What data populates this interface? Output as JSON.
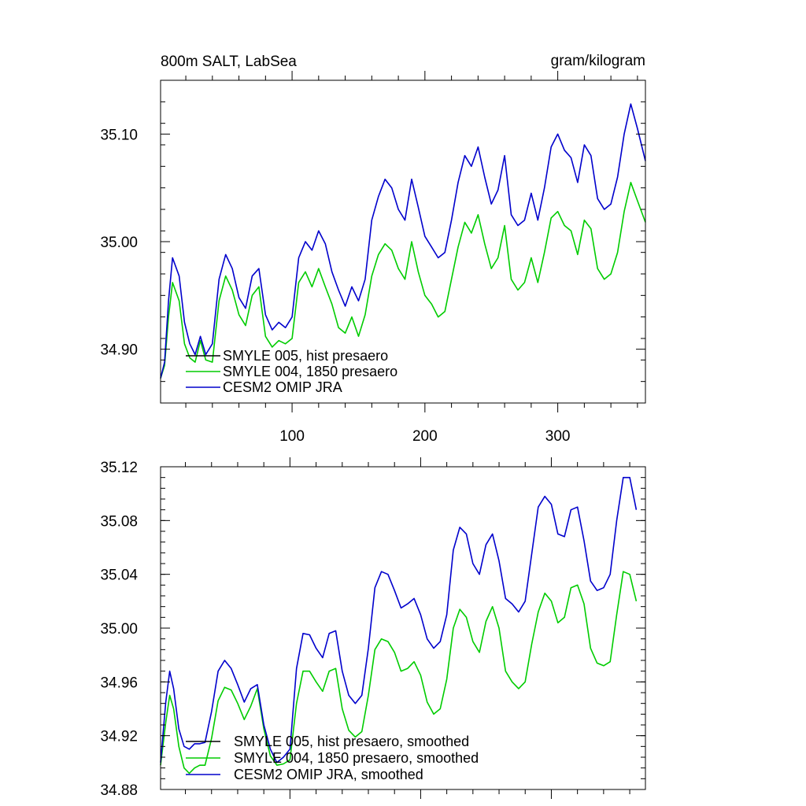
{
  "figure": {
    "title_left": "800m SALT, LabSea",
    "title_right": "gram/kilogram"
  },
  "chart_data": [
    {
      "type": "line",
      "title": "800m SALT, LabSea",
      "units": "gram/kilogram",
      "xlim": [
        1,
        366
      ],
      "ylim": [
        34.85,
        35.15
      ],
      "x_ticks": [
        100,
        200,
        300
      ],
      "x_tick_labels": [
        "100",
        "200",
        "300"
      ],
      "y_ticks": [
        34.9,
        35.0,
        35.1
      ],
      "y_tick_labels": [
        "34.90",
        "35.00",
        "35.10"
      ],
      "legend_position": "bottom-left",
      "series": [
        {
          "name": "SMYLE 005, hist presaero",
          "color": "#000000",
          "x": [],
          "values": []
        },
        {
          "name": "SMYLE 004, 1850 presaero",
          "color": "#00cc00",
          "x": [
            1,
            4,
            7,
            10,
            15,
            19,
            23,
            27,
            31,
            35,
            40,
            45,
            50,
            55,
            60,
            65,
            70,
            75,
            80,
            85,
            90,
            95,
            100,
            105,
            110,
            115,
            120,
            125,
            130,
            135,
            140,
            145,
            150,
            155,
            160,
            165,
            170,
            175,
            180,
            185,
            190,
            195,
            200,
            205,
            210,
            215,
            220,
            225,
            230,
            235,
            240,
            245,
            250,
            255,
            260,
            265,
            270,
            275,
            280,
            285,
            290,
            295,
            300,
            305,
            310,
            315,
            320,
            325,
            330,
            335,
            340,
            345,
            350,
            355,
            360,
            366
          ],
          "values": [
            34.873,
            34.885,
            34.93,
            34.962,
            34.945,
            34.905,
            34.892,
            34.888,
            34.908,
            34.89,
            34.888,
            34.945,
            34.968,
            34.955,
            34.932,
            34.922,
            34.95,
            34.958,
            34.912,
            34.902,
            34.908,
            34.905,
            34.91,
            34.962,
            34.972,
            34.958,
            34.975,
            34.958,
            34.942,
            34.92,
            34.915,
            34.93,
            34.912,
            34.932,
            34.968,
            34.988,
            34.998,
            34.992,
            34.975,
            34.965,
            35.0,
            34.972,
            34.95,
            34.942,
            34.93,
            34.935,
            34.965,
            34.995,
            35.018,
            35.008,
            35.025,
            34.998,
            34.975,
            34.985,
            35.015,
            34.965,
            34.955,
            34.962,
            34.985,
            34.962,
            34.99,
            35.022,
            35.028,
            35.015,
            35.01,
            34.988,
            35.02,
            35.012,
            34.975,
            34.965,
            34.97,
            34.99,
            35.028,
            35.055,
            35.038,
            35.018
          ]
        },
        {
          "name": "CESM2 OMIP JRA",
          "color": "#0000cc",
          "x": [
            1,
            4,
            7,
            10,
            15,
            19,
            23,
            27,
            31,
            35,
            40,
            45,
            50,
            55,
            60,
            65,
            70,
            75,
            80,
            85,
            90,
            95,
            100,
            105,
            110,
            115,
            120,
            125,
            130,
            135,
            140,
            145,
            150,
            155,
            160,
            165,
            170,
            175,
            180,
            185,
            190,
            195,
            200,
            205,
            210,
            215,
            220,
            225,
            230,
            235,
            240,
            245,
            250,
            255,
            260,
            265,
            270,
            275,
            280,
            285,
            290,
            295,
            300,
            305,
            310,
            315,
            320,
            325,
            330,
            335,
            340,
            345,
            350,
            355,
            360,
            366
          ],
          "values": [
            34.873,
            34.888,
            34.945,
            34.985,
            34.968,
            34.925,
            34.905,
            34.895,
            34.912,
            34.895,
            34.905,
            34.965,
            34.988,
            34.975,
            34.948,
            34.938,
            34.968,
            34.975,
            34.932,
            34.918,
            34.925,
            34.92,
            34.93,
            34.985,
            35.0,
            34.992,
            35.01,
            34.998,
            34.972,
            34.955,
            34.94,
            34.958,
            34.945,
            34.965,
            35.02,
            35.042,
            35.058,
            35.05,
            35.03,
            35.02,
            35.058,
            35.032,
            35.005,
            34.995,
            34.985,
            34.99,
            35.02,
            35.055,
            35.08,
            35.07,
            35.088,
            35.06,
            35.035,
            35.048,
            35.08,
            35.025,
            35.015,
            35.02,
            35.045,
            35.02,
            35.05,
            35.088,
            35.1,
            35.085,
            35.078,
            35.055,
            35.09,
            35.08,
            35.04,
            35.03,
            35.035,
            35.06,
            35.1,
            35.128,
            35.105,
            35.075
          ]
        }
      ]
    },
    {
      "type": "line",
      "title": "",
      "xlim": [
        1,
        372
      ],
      "ylim": [
        34.88,
        35.12
      ],
      "x_ticks": [
        100,
        200,
        300
      ],
      "y_ticks": [
        34.88,
        34.92,
        34.96,
        35.0,
        35.04,
        35.08,
        35.12
      ],
      "y_tick_labels": [
        "34.88",
        "34.92",
        "34.96",
        "35.00",
        "35.04",
        "35.08",
        "35.12"
      ],
      "legend_position": "bottom-left",
      "series": [
        {
          "name": "SMYLE 005, hist presaero, smoothed",
          "color": "#000000",
          "x": [],
          "values": []
        },
        {
          "name": "SMYLE 004, 1850 presaero, smoothed",
          "color": "#00cc00",
          "x": [
            1,
            5,
            8,
            11,
            15,
            19,
            23,
            27,
            31,
            35,
            40,
            45,
            50,
            55,
            60,
            65,
            70,
            75,
            80,
            85,
            90,
            95,
            100,
            105,
            110,
            115,
            120,
            125,
            130,
            135,
            140,
            145,
            150,
            155,
            160,
            165,
            170,
            175,
            180,
            185,
            190,
            195,
            200,
            205,
            210,
            215,
            220,
            225,
            230,
            235,
            240,
            245,
            250,
            255,
            260,
            265,
            270,
            275,
            280,
            285,
            290,
            295,
            300,
            305,
            310,
            315,
            320,
            325,
            330,
            335,
            340,
            345,
            350,
            355,
            360,
            365
          ],
          "values": [
            34.898,
            34.93,
            34.95,
            34.94,
            34.912,
            34.896,
            34.892,
            34.896,
            34.898,
            34.898,
            34.918,
            34.946,
            34.956,
            34.954,
            34.944,
            34.932,
            34.942,
            34.955,
            34.925,
            34.905,
            34.898,
            34.899,
            34.902,
            34.944,
            34.968,
            34.968,
            34.96,
            34.953,
            34.968,
            34.97,
            34.94,
            34.924,
            34.919,
            34.923,
            34.95,
            34.984,
            34.992,
            34.99,
            34.982,
            34.968,
            34.97,
            34.975,
            34.965,
            34.945,
            34.936,
            34.94,
            34.962,
            35.0,
            35.014,
            35.008,
            34.99,
            34.982,
            35.005,
            35.016,
            35.0,
            34.968,
            34.96,
            34.955,
            34.96,
            34.988,
            35.012,
            35.026,
            35.02,
            35.004,
            35.008,
            35.03,
            35.032,
            35.018,
            34.985,
            34.974,
            34.972,
            34.975,
            35.01,
            35.042,
            35.04,
            35.02
          ]
        },
        {
          "name": "CESM2 OMIP JRA, smoothed",
          "color": "#0000cc",
          "x": [
            1,
            5,
            8,
            11,
            15,
            19,
            23,
            27,
            31,
            35,
            40,
            45,
            50,
            55,
            60,
            65,
            70,
            75,
            80,
            85,
            90,
            95,
            100,
            105,
            110,
            115,
            120,
            125,
            130,
            135,
            140,
            145,
            150,
            155,
            160,
            165,
            170,
            175,
            180,
            185,
            190,
            195,
            200,
            205,
            210,
            215,
            220,
            225,
            230,
            235,
            240,
            245,
            250,
            255,
            260,
            265,
            270,
            275,
            280,
            285,
            290,
            295,
            300,
            305,
            310,
            315,
            320,
            325,
            330,
            335,
            340,
            345,
            350,
            355,
            360,
            365
          ],
          "values": [
            34.9,
            34.945,
            34.968,
            34.955,
            34.925,
            34.912,
            34.91,
            34.914,
            34.914,
            34.915,
            34.938,
            34.968,
            34.976,
            34.97,
            34.958,
            34.945,
            34.955,
            34.958,
            34.928,
            34.91,
            34.9,
            34.904,
            34.91,
            34.97,
            34.996,
            34.995,
            34.985,
            34.978,
            34.996,
            34.998,
            34.968,
            34.95,
            34.944,
            34.95,
            34.985,
            35.03,
            35.042,
            35.04,
            35.028,
            35.015,
            35.018,
            35.022,
            35.01,
            34.992,
            34.985,
            34.99,
            35.01,
            35.058,
            35.075,
            35.07,
            35.048,
            35.04,
            35.062,
            35.07,
            35.05,
            35.022,
            35.018,
            35.012,
            35.02,
            35.055,
            35.09,
            35.098,
            35.092,
            35.07,
            35.068,
            35.088,
            35.09,
            35.065,
            35.035,
            35.028,
            35.03,
            35.04,
            35.08,
            35.112,
            35.112,
            35.088
          ]
        }
      ]
    }
  ]
}
